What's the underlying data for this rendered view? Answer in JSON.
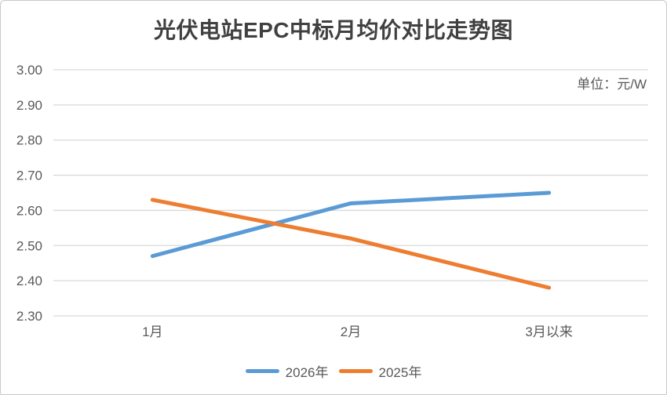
{
  "chart_data": {
    "type": "line",
    "title": "光伏电站EPC中标月均价对比走势图",
    "unit_label": "单位：元/W",
    "categories": [
      "1月",
      "2月",
      "3月以来"
    ],
    "series": [
      {
        "name": "2026年",
        "color": "#5B9BD5",
        "values": [
          2.47,
          2.62,
          2.65
        ]
      },
      {
        "name": "2025年",
        "color": "#ED7D31",
        "values": [
          2.63,
          2.52,
          2.38
        ]
      }
    ],
    "y_axis": {
      "min": 2.3,
      "max": 3.0,
      "step": 0.1,
      "tick_labels": [
        "3.00",
        "2.90",
        "2.80",
        "2.70",
        "2.60",
        "2.50",
        "2.40",
        "2.30"
      ]
    },
    "xlabel": "",
    "ylabel": "",
    "grid": "horizontal",
    "legend_position": "bottom",
    "colors": {
      "title_text": "#404040",
      "axis_text": "#595959",
      "gridline": "#D9D9D9",
      "card_border": "#c9c9c9",
      "background": "#ffffff"
    }
  }
}
